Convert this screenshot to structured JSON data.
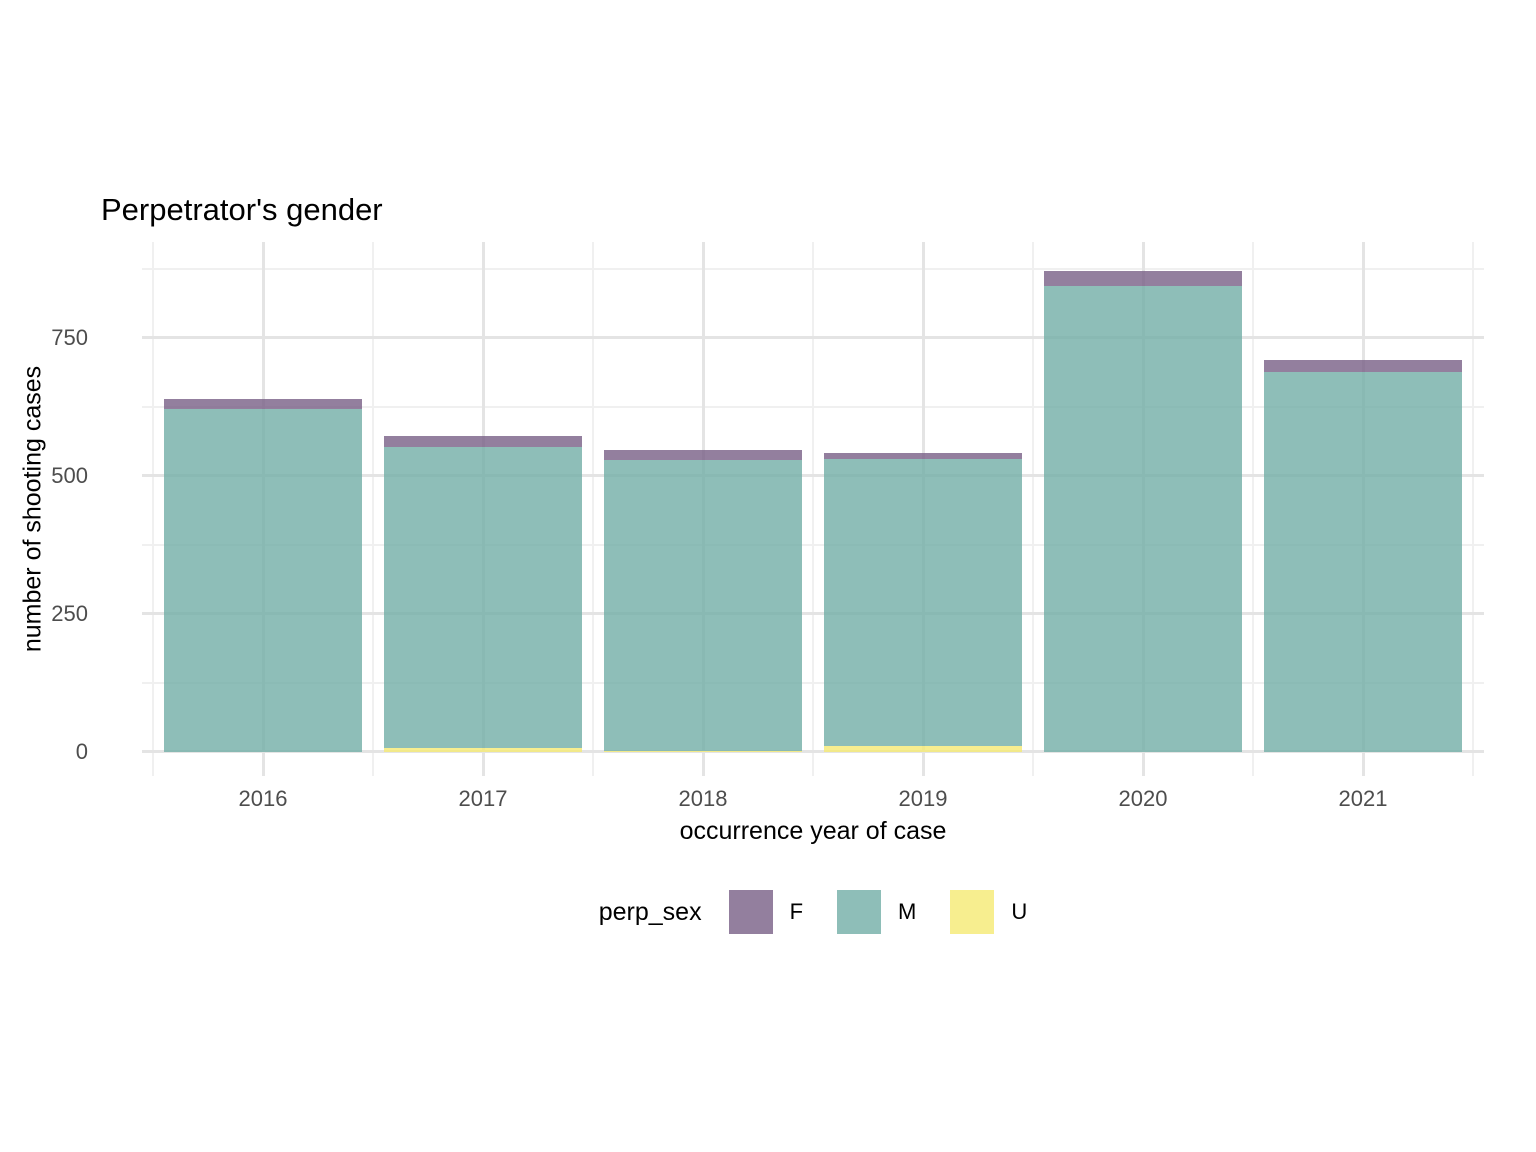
{
  "title": "Perpetrator's gender",
  "chart_data": {
    "type": "bar",
    "stacked": true,
    "title": "Perpetrator's gender",
    "xlabel": "occurrence year of case",
    "ylabel": "number of shooting cases",
    "categories": [
      2016,
      2017,
      2018,
      2019,
      2020,
      2021
    ],
    "series": [
      {
        "name": "F",
        "color_rgba": "rgba(120,95,134,0.8)",
        "values": [
          19,
          20,
          19,
          12,
          26,
          23
        ]
      },
      {
        "name": "M",
        "color_rgba": "rgba(114,174,166,0.8)",
        "values": [
          621,
          547,
          526,
          519,
          845,
          688
        ]
      },
      {
        "name": "U",
        "color_rgba": "rgba(245,234,115,0.8)",
        "values": [
          0,
          6,
          2,
          11,
          0,
          0
        ]
      }
    ],
    "stack_order_bottom_to_top": [
      "U",
      "M",
      "F"
    ],
    "totals": [
      640,
      573,
      547,
      542,
      871,
      711
    ],
    "y_ticks": [
      0,
      250,
      500,
      750
    ],
    "y_minor": [
      125,
      375,
      625,
      875
    ],
    "x_minor": [
      2015.5,
      2016.5,
      2017.5,
      2018.5,
      2019.5,
      2020.5,
      2021.5
    ],
    "ylim": [
      0,
      880
    ],
    "y_domain": [
      -44,
      924
    ],
    "x_domain": [
      2015.45,
      2021.55
    ],
    "bar_width_fraction": 0.9,
    "grid": true,
    "legend_title": "perp_sex",
    "legend_position": "bottom",
    "colors": {
      "F_on_white": "#937F9E",
      "M_on_white": "#8EBEB8",
      "U_on_white": "#F7EE8F",
      "grid_major": "#e4e4e4",
      "grid_minor": "#f0f0f0",
      "tick_text": "#4d4d4d",
      "title_text": "#000000",
      "background": "#ffffff"
    }
  }
}
